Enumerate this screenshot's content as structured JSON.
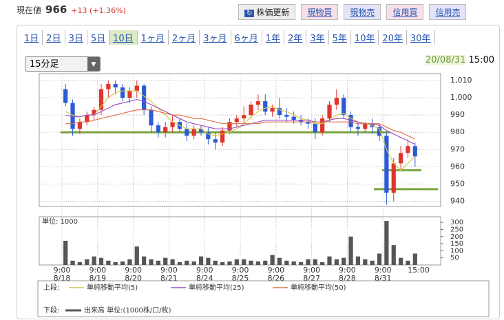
{
  "header": {
    "price_label": "現在値",
    "price": "966",
    "change": "+13 (+1.36%)",
    "buttons": [
      "株価更新",
      "現物買",
      "現物売",
      "信用買",
      "信用売"
    ]
  },
  "tabs": [
    "1日",
    "2日",
    "3日",
    "5日",
    "10日",
    "1ヶ月",
    "2ヶ月",
    "3ヶ月",
    "6ヶ月",
    "1年",
    "2年",
    "3年",
    "5年",
    "10年",
    "20年",
    "30年"
  ],
  "active_tab": 4,
  "select": "15分足",
  "timestamp": {
    "date": "20/08/31",
    "time": "15:00"
  },
  "chart_data": {
    "type": "candlestick",
    "ylim": [
      937,
      1014
    ],
    "yticks": [
      940,
      950,
      960,
      970,
      980,
      990,
      {
        "value": 1000,
        "label": "1,000"
      },
      {
        "value": 1010,
        "label": "1,010"
      }
    ],
    "y2lim": [
      0,
      320
    ],
    "y2ticks": [
      50,
      100,
      150,
      200,
      250,
      300
    ],
    "volume_label": "単位: 1000",
    "up_color": "#e0342c",
    "down_color": "#2a5bd7",
    "x_labels": [
      {
        "time": "9:00",
        "date": "8/18"
      },
      {
        "time": "9:00",
        "date": "8/19"
      },
      {
        "time": "9:00",
        "date": "8/20"
      },
      {
        "time": "9:00",
        "date": "8/21"
      },
      {
        "time": "9:00",
        "date": "8/24"
      },
      {
        "time": "9:00",
        "date": "8/25"
      },
      {
        "time": "9:00",
        "date": "8/26"
      },
      {
        "time": "9:00",
        "date": "8/27"
      },
      {
        "time": "9:00",
        "date": "8/28"
      },
      {
        "time": "9:00",
        "date": "8/31"
      },
      {
        "time": "15:00"
      }
    ],
    "ohlc": [
      [
        1005,
        1008,
        995,
        997
      ],
      [
        997,
        999,
        978,
        982
      ],
      [
        982,
        988,
        979,
        986
      ],
      [
        986,
        992,
        984,
        990
      ],
      [
        990,
        995,
        987,
        993
      ],
      [
        993,
        1008,
        990,
        1005
      ],
      [
        1005,
        1010,
        1000,
        1008
      ],
      [
        1008,
        1010,
        1002,
        1006
      ],
      [
        1006,
        1008,
        998,
        1000
      ],
      [
        1000,
        1006,
        997,
        1004
      ],
      [
        1004,
        1010,
        1000,
        1007
      ],
      [
        1007,
        1008,
        990,
        993
      ],
      [
        993,
        995,
        980,
        984
      ],
      [
        984,
        986,
        977,
        980
      ],
      [
        980,
        986,
        977,
        983
      ],
      [
        983,
        990,
        980,
        986
      ],
      [
        986,
        988,
        980,
        982
      ],
      [
        982,
        985,
        975,
        978
      ],
      [
        978,
        984,
        976,
        982
      ],
      [
        982,
        984,
        978,
        980
      ],
      [
        980,
        983,
        973,
        976
      ],
      [
        976,
        980,
        970,
        974
      ],
      [
        974,
        983,
        972,
        981
      ],
      [
        981,
        988,
        979,
        986
      ],
      [
        986,
        990,
        983,
        988
      ],
      [
        988,
        995,
        985,
        990
      ],
      [
        990,
        998,
        988,
        996
      ],
      [
        996,
        1002,
        993,
        998
      ],
      [
        998,
        1002,
        990,
        992
      ],
      [
        992,
        996,
        989,
        994
      ],
      [
        994,
        1000,
        988,
        990
      ],
      [
        990,
        994,
        986,
        989
      ],
      [
        989,
        992,
        985,
        987
      ],
      [
        987,
        990,
        984,
        986
      ],
      [
        986,
        988,
        982,
        985
      ],
      [
        985,
        988,
        976,
        980
      ],
      [
        980,
        990,
        978,
        988
      ],
      [
        988,
        998,
        986,
        996
      ],
      [
        996,
        1005,
        993,
        1000
      ],
      [
        1000,
        1002,
        988,
        990
      ],
      [
        990,
        992,
        980,
        983
      ],
      [
        983,
        986,
        978,
        982
      ],
      [
        982,
        986,
        980,
        985
      ],
      [
        985,
        988,
        979,
        983
      ],
      [
        983,
        985,
        975,
        978
      ],
      [
        978,
        980,
        938,
        945
      ],
      [
        945,
        965,
        940,
        962
      ],
      [
        962,
        972,
        958,
        968
      ],
      [
        968,
        976,
        965,
        972
      ],
      [
        972,
        974,
        960,
        966
      ]
    ],
    "series": [
      {
        "name": "単純移動平均(5)",
        "color": "#d6c64a",
        "values": [
          992,
          990,
          989,
          990,
          990,
          995,
          1000,
          1003,
          1004,
          1004,
          1004,
          1001,
          998,
          994,
          990,
          986,
          984,
          982,
          982,
          982,
          979,
          978,
          979,
          980,
          982,
          985,
          989,
          992,
          994,
          995,
          993,
          992,
          990,
          988,
          987,
          985,
          985,
          987,
          990,
          991,
          988,
          986,
          985,
          984,
          982,
          970,
          962,
          958,
          962,
          966
        ]
      },
      {
        "name": "単純移動平均(25)",
        "color": "#9b4fc4",
        "values": [
          990,
          989,
          989,
          990,
          990,
          992,
          994,
          996,
          997,
          998,
          999,
          998,
          996,
          994,
          992,
          990,
          988,
          986,
          985,
          984,
          983,
          982,
          982,
          982,
          983,
          984,
          985,
          986,
          987,
          987,
          987,
          987,
          987,
          987,
          987,
          986,
          986,
          987,
          988,
          988,
          987,
          986,
          985,
          985,
          984,
          981,
          979,
          977,
          975,
          973
        ]
      },
      {
        "name": "単純移動平均(50)",
        "color": "#e0704a",
        "values": [
          985,
          985,
          986,
          986,
          987,
          988,
          989,
          990,
          991,
          992,
          993,
          993,
          993,
          992,
          991,
          990,
          990,
          989,
          988,
          988,
          987,
          986,
          985,
          985,
          985,
          985,
          985,
          985,
          986,
          986,
          986,
          986,
          986,
          986,
          986,
          986,
          986,
          986,
          986,
          986,
          986,
          985,
          985,
          985,
          985,
          983,
          981,
          980,
          978,
          976
        ]
      }
    ],
    "volume": {
      "name": "出来高 単位:(1000株/口/枚)",
      "color": "#555555",
      "values": [
        170,
        30,
        20,
        40,
        60,
        50,
        30,
        20,
        25,
        40,
        130,
        60,
        40,
        30,
        50,
        40,
        20,
        30,
        25,
        60,
        50,
        30,
        20,
        25,
        40,
        40,
        30,
        25,
        30,
        70,
        50,
        30,
        25,
        20,
        40,
        40,
        20,
        60,
        40,
        50,
        200,
        60,
        40,
        30,
        80,
        310,
        140,
        50,
        30,
        80
      ]
    },
    "horizontal_lines": [
      980,
      958,
      947
    ],
    "line_color": "#7aa23c",
    "legend_upper": "上段:",
    "legend_lower": "下段:"
  }
}
